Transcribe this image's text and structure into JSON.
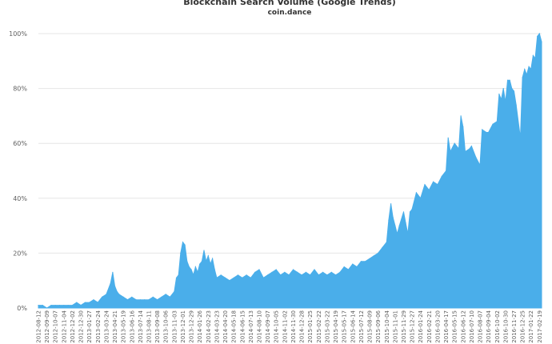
{
  "chart_data": {
    "type": "area",
    "title": "Blockchain Search Volume (Google Trends)",
    "subtitle": "coin.dance",
    "y_tick_labels": [
      "0%",
      "20%",
      "40%",
      "60%",
      "80%",
      "100%"
    ],
    "ylim": [
      0,
      100
    ],
    "grid": true,
    "legend": "none",
    "colors": {
      "area": "#4aaeea",
      "gridline": "#e6e6e6",
      "text": "#333333",
      "tick_text": "#606060"
    },
    "x_tick_labels": [
      "2012-08-12",
      "2012-09-09",
      "2012-10-07",
      "2012-11-04",
      "2012-12-02",
      "2012-12-30",
      "2013-01-27",
      "2013-02-24",
      "2013-03-24",
      "2013-04-21",
      "2013-05-19",
      "2013-06-16",
      "2013-07-14",
      "2013-08-11",
      "2013-09-08",
      "2013-10-06",
      "2013-11-03",
      "2013-12-01",
      "2013-12-29",
      "2014-01-26",
      "2014-02-23",
      "2014-03-23",
      "2014-04-20",
      "2014-05-18",
      "2014-06-15",
      "2014-07-13",
      "2014-08-10",
      "2014-09-07",
      "2014-10-05",
      "2014-11-02",
      "2014-11-30",
      "2014-12-28",
      "2015-01-25",
      "2015-02-22",
      "2015-03-22",
      "2015-04-19",
      "2015-05-17",
      "2015-06-14",
      "2015-07-12",
      "2015-08-09",
      "2015-09-06",
      "2015-10-04",
      "2015-11-01",
      "2015-11-29",
      "2015-12-27",
      "2016-01-24",
      "2016-02-21",
      "2016-03-20",
      "2016-04-17",
      "2016-05-15",
      "2016-06-12",
      "2016-07-10",
      "2016-08-07",
      "2016-09-04",
      "2016-10-02",
      "2016-10-30",
      "2016-11-27",
      "2016-12-25",
      "2017-01-22",
      "2017-02-19"
    ],
    "series": [
      {
        "points": [
          [
            "2012-08-12",
            1
          ],
          [
            "2012-08-26",
            1
          ],
          [
            "2012-09-09",
            0
          ],
          [
            "2012-09-23",
            1
          ],
          [
            "2012-10-07",
            1
          ],
          [
            "2012-10-21",
            1
          ],
          [
            "2012-11-04",
            1
          ],
          [
            "2012-11-18",
            1
          ],
          [
            "2012-12-02",
            1
          ],
          [
            "2012-12-16",
            2
          ],
          [
            "2012-12-30",
            1
          ],
          [
            "2013-01-13",
            2
          ],
          [
            "2013-01-27",
            2
          ],
          [
            "2013-02-10",
            3
          ],
          [
            "2013-02-24",
            2
          ],
          [
            "2013-03-10",
            4
          ],
          [
            "2013-03-24",
            5
          ],
          [
            "2013-04-07",
            9
          ],
          [
            "2013-04-14",
            13
          ],
          [
            "2013-04-21",
            8
          ],
          [
            "2013-04-28",
            6
          ],
          [
            "2013-05-05",
            5
          ],
          [
            "2013-05-19",
            4
          ],
          [
            "2013-06-02",
            3
          ],
          [
            "2013-06-16",
            4
          ],
          [
            "2013-06-30",
            3
          ],
          [
            "2013-07-14",
            3
          ],
          [
            "2013-07-28",
            3
          ],
          [
            "2013-08-11",
            3
          ],
          [
            "2013-08-25",
            4
          ],
          [
            "2013-09-08",
            3
          ],
          [
            "2013-09-22",
            4
          ],
          [
            "2013-10-06",
            5
          ],
          [
            "2013-10-20",
            4
          ],
          [
            "2013-11-03",
            6
          ],
          [
            "2013-11-10",
            11
          ],
          [
            "2013-11-17",
            12
          ],
          [
            "2013-11-24",
            20
          ],
          [
            "2013-12-01",
            24
          ],
          [
            "2013-12-08",
            23
          ],
          [
            "2013-12-15",
            17
          ],
          [
            "2013-12-22",
            15
          ],
          [
            "2013-12-29",
            14
          ],
          [
            "2014-01-05",
            12
          ],
          [
            "2014-01-12",
            15
          ],
          [
            "2014-01-19",
            13
          ],
          [
            "2014-01-26",
            16
          ],
          [
            "2014-02-02",
            17
          ],
          [
            "2014-02-09",
            21
          ],
          [
            "2014-02-16",
            17
          ],
          [
            "2014-02-23",
            19
          ],
          [
            "2014-03-02",
            16
          ],
          [
            "2014-03-09",
            18
          ],
          [
            "2014-03-16",
            14
          ],
          [
            "2014-03-23",
            11
          ],
          [
            "2014-04-06",
            12
          ],
          [
            "2014-04-20",
            11
          ],
          [
            "2014-05-04",
            10
          ],
          [
            "2014-05-18",
            11
          ],
          [
            "2014-06-01",
            12
          ],
          [
            "2014-06-15",
            11
          ],
          [
            "2014-06-29",
            12
          ],
          [
            "2014-07-13",
            11
          ],
          [
            "2014-07-27",
            13
          ],
          [
            "2014-08-10",
            14
          ],
          [
            "2014-08-24",
            11
          ],
          [
            "2014-09-07",
            12
          ],
          [
            "2014-09-21",
            13
          ],
          [
            "2014-10-05",
            14
          ],
          [
            "2014-10-19",
            12
          ],
          [
            "2014-11-02",
            13
          ],
          [
            "2014-11-16",
            12
          ],
          [
            "2014-11-30",
            14
          ],
          [
            "2014-12-14",
            13
          ],
          [
            "2014-12-28",
            12
          ],
          [
            "2015-01-11",
            13
          ],
          [
            "2015-01-25",
            12
          ],
          [
            "2015-02-08",
            14
          ],
          [
            "2015-02-22",
            12
          ],
          [
            "2015-03-08",
            13
          ],
          [
            "2015-03-22",
            12
          ],
          [
            "2015-04-05",
            13
          ],
          [
            "2015-04-19",
            12
          ],
          [
            "2015-05-03",
            13
          ],
          [
            "2015-05-17",
            15
          ],
          [
            "2015-05-31",
            14
          ],
          [
            "2015-06-14",
            16
          ],
          [
            "2015-06-28",
            15
          ],
          [
            "2015-07-12",
            17
          ],
          [
            "2015-07-26",
            17
          ],
          [
            "2015-08-09",
            18
          ],
          [
            "2015-08-23",
            19
          ],
          [
            "2015-09-06",
            20
          ],
          [
            "2015-09-20",
            22
          ],
          [
            "2015-10-04",
            24
          ],
          [
            "2015-10-11",
            32
          ],
          [
            "2015-10-18",
            38
          ],
          [
            "2015-10-25",
            33
          ],
          [
            "2015-11-01",
            30
          ],
          [
            "2015-11-08",
            27
          ],
          [
            "2015-11-15",
            30
          ],
          [
            "2015-11-29",
            35
          ],
          [
            "2015-12-06",
            31
          ],
          [
            "2015-12-13",
            27
          ],
          [
            "2015-12-20",
            35
          ],
          [
            "2015-12-27",
            36
          ],
          [
            "2016-01-10",
            42
          ],
          [
            "2016-01-24",
            40
          ],
          [
            "2016-02-07",
            45
          ],
          [
            "2016-02-21",
            43
          ],
          [
            "2016-03-06",
            46
          ],
          [
            "2016-03-20",
            45
          ],
          [
            "2016-04-03",
            48
          ],
          [
            "2016-04-17",
            50
          ],
          [
            "2016-04-24",
            62
          ],
          [
            "2016-05-01",
            57
          ],
          [
            "2016-05-15",
            60
          ],
          [
            "2016-05-29",
            58
          ],
          [
            "2016-06-05",
            70
          ],
          [
            "2016-06-12",
            66
          ],
          [
            "2016-06-19",
            57
          ],
          [
            "2016-07-03",
            58
          ],
          [
            "2016-07-10",
            59
          ],
          [
            "2016-07-24",
            55
          ],
          [
            "2016-08-07",
            52
          ],
          [
            "2016-08-14",
            65
          ],
          [
            "2016-08-28",
            64
          ],
          [
            "2016-09-04",
            64
          ],
          [
            "2016-09-18",
            67
          ],
          [
            "2016-10-02",
            68
          ],
          [
            "2016-10-09",
            78
          ],
          [
            "2016-10-16",
            76
          ],
          [
            "2016-10-23",
            80
          ],
          [
            "2016-10-30",
            75
          ],
          [
            "2016-11-06",
            83
          ],
          [
            "2016-11-13",
            83
          ],
          [
            "2016-11-20",
            80
          ],
          [
            "2016-11-27",
            79
          ],
          [
            "2016-12-04",
            74
          ],
          [
            "2016-12-18",
            62
          ],
          [
            "2016-12-25",
            84
          ],
          [
            "2017-01-01",
            87
          ],
          [
            "2017-01-08",
            85
          ],
          [
            "2017-01-15",
            88
          ],
          [
            "2017-01-22",
            87
          ],
          [
            "2017-01-29",
            92
          ],
          [
            "2017-02-05",
            91
          ],
          [
            "2017-02-12",
            99
          ],
          [
            "2017-02-19",
            100
          ],
          [
            "2017-02-26",
            97
          ]
        ]
      }
    ]
  }
}
